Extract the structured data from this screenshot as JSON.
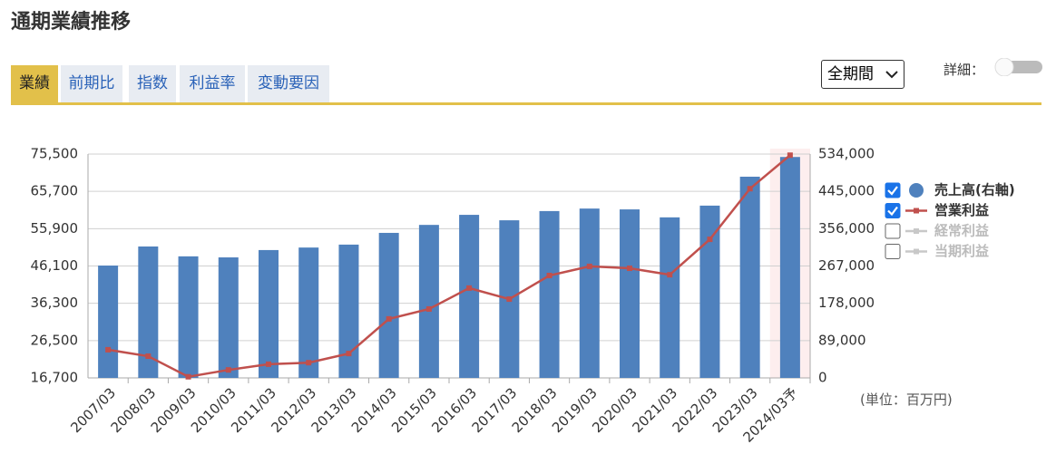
{
  "page_title": "通期業績推移",
  "tabs": [
    "業績",
    "前期比",
    "指数",
    "利益率",
    "変動要因"
  ],
  "active_tab": 0,
  "period_select": "全期間",
  "detail_label": "詳細：",
  "detail_on": false,
  "unit_note": "(単位：百万円)",
  "chart_data": {
    "type": "bar",
    "categories": [
      "2007/03",
      "2008/03",
      "2009/03",
      "2010/03",
      "2011/03",
      "2012/03",
      "2013/03",
      "2014/03",
      "2015/03",
      "2016/03",
      "2017/03",
      "2018/03",
      "2019/03",
      "2020/03",
      "2021/03",
      "2022/03",
      "2023/03",
      "2024/03予"
    ],
    "series": [
      {
        "name": "売上高(右軸)",
        "type": "bar",
        "axis": "y2",
        "color": "#4f81bd",
        "checked": true,
        "values": [
          268000,
          313500,
          290000,
          287500,
          305000,
          311000,
          318000,
          346000,
          365000,
          389000,
          376000,
          398000,
          404000,
          402000,
          383000,
          411000,
          480000,
          527000
        ]
      },
      {
        "name": "営業利益",
        "type": "line",
        "color": "#c0504d",
        "checked": true,
        "values": [
          24100,
          22400,
          17000,
          18800,
          20300,
          20700,
          23100,
          32200,
          34800,
          40300,
          37400,
          43600,
          46000,
          45500,
          43800,
          53100,
          66400,
          75200
        ]
      },
      {
        "name": "経常利益",
        "type": "line",
        "color": "#c8c8c8",
        "checked": false
      },
      {
        "name": "当期利益",
        "type": "line",
        "color": "#c8c8c8",
        "checked": false
      }
    ],
    "ylim": [
      16700,
      75500
    ],
    "yticks": [
      {
        "value": 16700,
        "label": "16,700"
      },
      {
        "value": 26500,
        "label": "26,500"
      },
      {
        "value": 36300,
        "label": "36,300"
      },
      {
        "value": 46100,
        "label": "46,100"
      },
      {
        "value": 55900,
        "label": "55,900"
      },
      {
        "value": 65700,
        "label": "65,700"
      },
      {
        "value": 75500,
        "label": "75,500"
      }
    ],
    "y2lim": [
      0,
      534000
    ],
    "y2ticks": [
      0,
      {
        "value": 89000,
        "label": "89,000"
      },
      {
        "value": 178000,
        "label": "178,000"
      },
      {
        "value": 267000,
        "label": "267,000"
      },
      {
        "value": 356000,
        "label": "356,000"
      },
      {
        "value": 445000,
        "label": "445,000"
      },
      {
        "value": 534000,
        "label": "534,000"
      }
    ],
    "grid": true
  }
}
